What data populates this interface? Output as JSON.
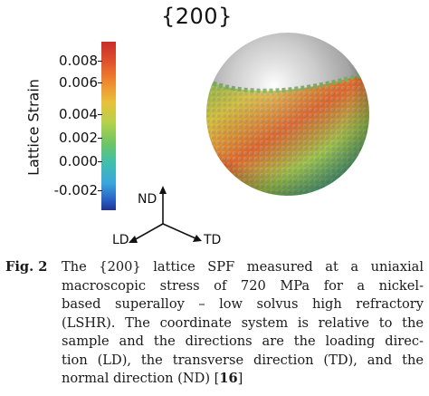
{
  "figure": {
    "title": "{200}",
    "colorbar": {
      "label": "Lattice Strain",
      "ticks": [
        "0.008",
        "0.006",
        "0.004",
        "0.002",
        "0.000",
        "-0.002"
      ],
      "colors": [
        "#c62f2a",
        "#ef8a2f",
        "#e8c13b",
        "#6fc563",
        "#3fbfb0",
        "#2a5fc4",
        "#22338f"
      ]
    },
    "axes": {
      "nd": "ND",
      "ld": "LD",
      "td": "TD"
    }
  },
  "caption": {
    "label": "Fig. 2",
    "lines": [
      "The {200} lattice SPF measured at a uniaxial",
      "macroscopic stress of 720 MPa for a nickel-",
      "based superalloy – low solvus high refractory",
      "(LSHR). The coordinate system is relative to the",
      "sample and the directions are the loading direc-",
      "tion (LD), the transverse direction (TD), and the",
      "normal direction (ND) ["
    ],
    "ref": "16",
    "ref_close": "]"
  }
}
